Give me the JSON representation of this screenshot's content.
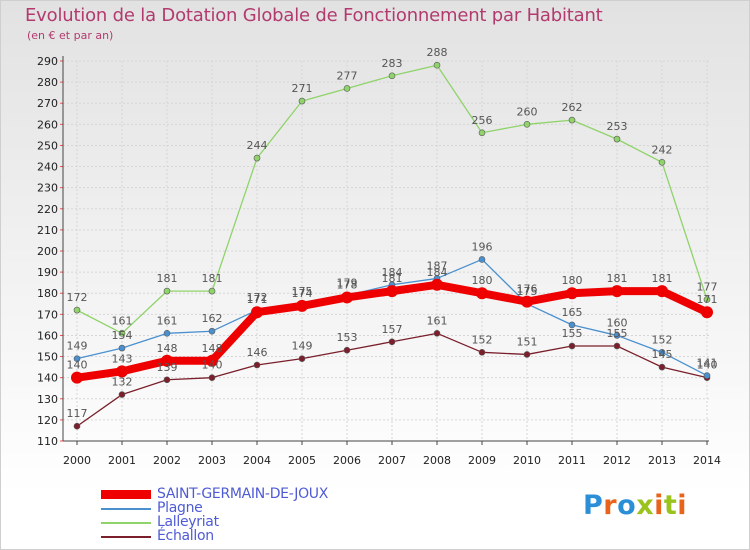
{
  "title": "Evolution de la Dotation Globale de Fonctionnement par Habitant",
  "subtitle": "(en € et par an)",
  "logo": {
    "text": "Proxiti",
    "colors": [
      "#2a8fd6",
      "#e8641b",
      "#2a8fd6",
      "#9ac31c",
      "#e8641b",
      "#9ac31c",
      "#e8641b"
    ]
  },
  "chart_data": {
    "type": "line",
    "title": "Evolution de la Dotation Globale de Fonctionnement par Habitant",
    "ylabel": "(en € et par an)",
    "xlabel": "",
    "x": [
      "2000",
      "2001",
      "2002",
      "2003",
      "2004",
      "2005",
      "2006",
      "2007",
      "2008",
      "2009",
      "2010",
      "2011",
      "2012",
      "2013",
      "2014"
    ],
    "ylim": [
      110,
      290
    ],
    "yticks": [
      110,
      120,
      130,
      140,
      150,
      160,
      170,
      180,
      190,
      200,
      210,
      220,
      230,
      240,
      250,
      260,
      270,
      280,
      290
    ],
    "grid": true,
    "legend_position": "bottom-left",
    "series": [
      {
        "name": "Échallon",
        "color": "#7a1f2b",
        "values": [
          117,
          132,
          139,
          140,
          146,
          149,
          153,
          157,
          161,
          152,
          151,
          155,
          155,
          145,
          140
        ]
      },
      {
        "name": "Plagne",
        "color": "#4a90cf",
        "values": [
          149,
          154,
          161,
          162,
          172,
          175,
          179,
          184,
          187,
          196,
          175,
          165,
          160,
          152,
          141
        ]
      },
      {
        "name": "Lalleyriat",
        "color": "#8fd36a",
        "values": [
          172,
          161,
          181,
          181,
          244,
          271,
          277,
          283,
          288,
          256,
          260,
          262,
          253,
          242,
          177
        ]
      },
      {
        "name": "SAINT-GERMAIN-DE-JOUX",
        "color": "#ee0000",
        "values": [
          140,
          143,
          148,
          148,
          171,
          174,
          178,
          181,
          184,
          180,
          176,
          180,
          181,
          181,
          171
        ]
      }
    ],
    "legend": [
      "SAINT-GERMAIN-DE-JOUX",
      "Plagne",
      "Lalleyriat",
      "Échallon"
    ],
    "data_labels": [
      {
        "series": "Échallon",
        "labels": [
          "117",
          "132",
          "139",
          "140",
          "146",
          "149",
          "153",
          "157",
          "161",
          "152",
          "151",
          "155",
          "155",
          "145",
          "140"
        ]
      },
      {
        "series": "Plagne",
        "labels": [
          "149",
          "154",
          "161",
          "162",
          "172",
          "175",
          "179",
          "184",
          "187",
          "196",
          "175",
          "165",
          "160",
          "152",
          "141"
        ]
      },
      {
        "series": "Lalleyriat",
        "labels": [
          "172",
          "161",
          "181",
          "181",
          "244",
          "271",
          "277",
          "283",
          "288",
          "256",
          "260",
          "262",
          "253",
          "242",
          "177"
        ]
      },
      {
        "series": "SAINT-GERMAIN-DE-JOUX",
        "labels": [
          "140",
          "143",
          "148",
          "148",
          "171",
          "174",
          "178",
          "181",
          "184",
          "180",
          "176",
          "180",
          "181",
          "181",
          "171"
        ]
      }
    ]
  }
}
